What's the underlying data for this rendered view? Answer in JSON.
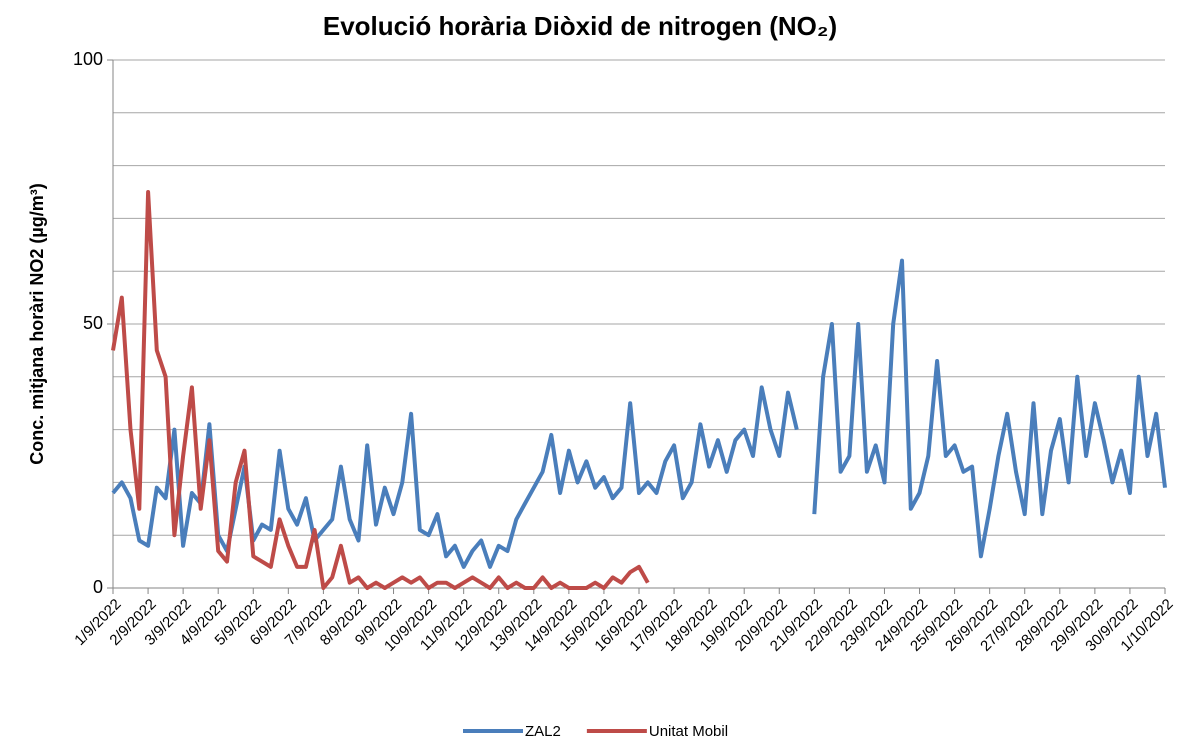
{
  "chart_data": {
    "type": "line",
    "title": "Evolució horària Diòxid de nitrogen (NO₂)",
    "y_label": "Conc. mitjana horàri NO2 (µg/m³)",
    "xticks": [
      "1/9/2022",
      "2/9/2022",
      "3/9/2022",
      "4/9/2022",
      "5/9/2022",
      "6/9/2022",
      "7/9/2022",
      "8/9/2022",
      "9/9/2022",
      "10/9/2022",
      "11/9/2022",
      "12/9/2022",
      "13/9/2022",
      "14/9/2022",
      "15/9/2022",
      "16/9/2022",
      "17/9/2022",
      "18/9/2022",
      "19/9/2022",
      "20/9/2022",
      "21/9/2022",
      "22/9/2022",
      "23/9/2022",
      "24/9/2022",
      "25/9/2022",
      "26/9/2022",
      "27/9/2022",
      "28/9/2022",
      "29/9/2022",
      "30/9/2022",
      "1/10/2022"
    ],
    "ylim": [
      0,
      100
    ],
    "yticks": [
      0,
      50,
      100
    ],
    "ygrid": [
      10,
      20,
      30,
      40,
      50,
      60,
      70,
      80,
      90,
      100
    ],
    "grid": true,
    "legend": "bottom",
    "series": [
      {
        "name": "ZAL2",
        "color": "#4a7ebb",
        "values": [
          18,
          20,
          17,
          9,
          8,
          19,
          17,
          30,
          8,
          18,
          16,
          31,
          10,
          7,
          15,
          23,
          9,
          12,
          11,
          26,
          15,
          12,
          17,
          9,
          11,
          13,
          23,
          13,
          9,
          27,
          12,
          19,
          14,
          20,
          33,
          11,
          10,
          14,
          6,
          8,
          4,
          7,
          9,
          4,
          8,
          7,
          13,
          16,
          19,
          22,
          29,
          18,
          26,
          20,
          24,
          19,
          21,
          17,
          19,
          35,
          18,
          20,
          18,
          24,
          27,
          17,
          20,
          31,
          23,
          28,
          22,
          28,
          30,
          25,
          38,
          30,
          25,
          37,
          30,
          null,
          14,
          40,
          50,
          22,
          25,
          50,
          22,
          27,
          20,
          50,
          62,
          15,
          18,
          25,
          43,
          25,
          27,
          22,
          23,
          6,
          15,
          25,
          33,
          22,
          14,
          35,
          14,
          26,
          32,
          20,
          40,
          25,
          35,
          28,
          20,
          26,
          18,
          40,
          25,
          33,
          19
        ]
      },
      {
        "name": "Unitat Mobil",
        "color": "#be4b48",
        "values": [
          45,
          55,
          30,
          15,
          75,
          45,
          40,
          10,
          25,
          38,
          15,
          28,
          7,
          5,
          20,
          26,
          6,
          5,
          4,
          13,
          8,
          4,
          4,
          11,
          0,
          2,
          8,
          1,
          2,
          0,
          1,
          0,
          1,
          2,
          1,
          2,
          0,
          1,
          1,
          0,
          1,
          2,
          1,
          0,
          2,
          0,
          1,
          0,
          0,
          2,
          0,
          1,
          0,
          0,
          0,
          1,
          0,
          2,
          1,
          3,
          4,
          1,
          null,
          null,
          null,
          null,
          null,
          null,
          null,
          null,
          null,
          null,
          null,
          null,
          null,
          null,
          null,
          null,
          null,
          null,
          null,
          null,
          null,
          null,
          null,
          null,
          null,
          null,
          null,
          null,
          null,
          null,
          null,
          null,
          null,
          null,
          null,
          null,
          null,
          null,
          null,
          null,
          null,
          null,
          null,
          null,
          null,
          null,
          null,
          null,
          null,
          null,
          null,
          null,
          null,
          null,
          null,
          null,
          null,
          null,
          null
        ]
      }
    ]
  }
}
